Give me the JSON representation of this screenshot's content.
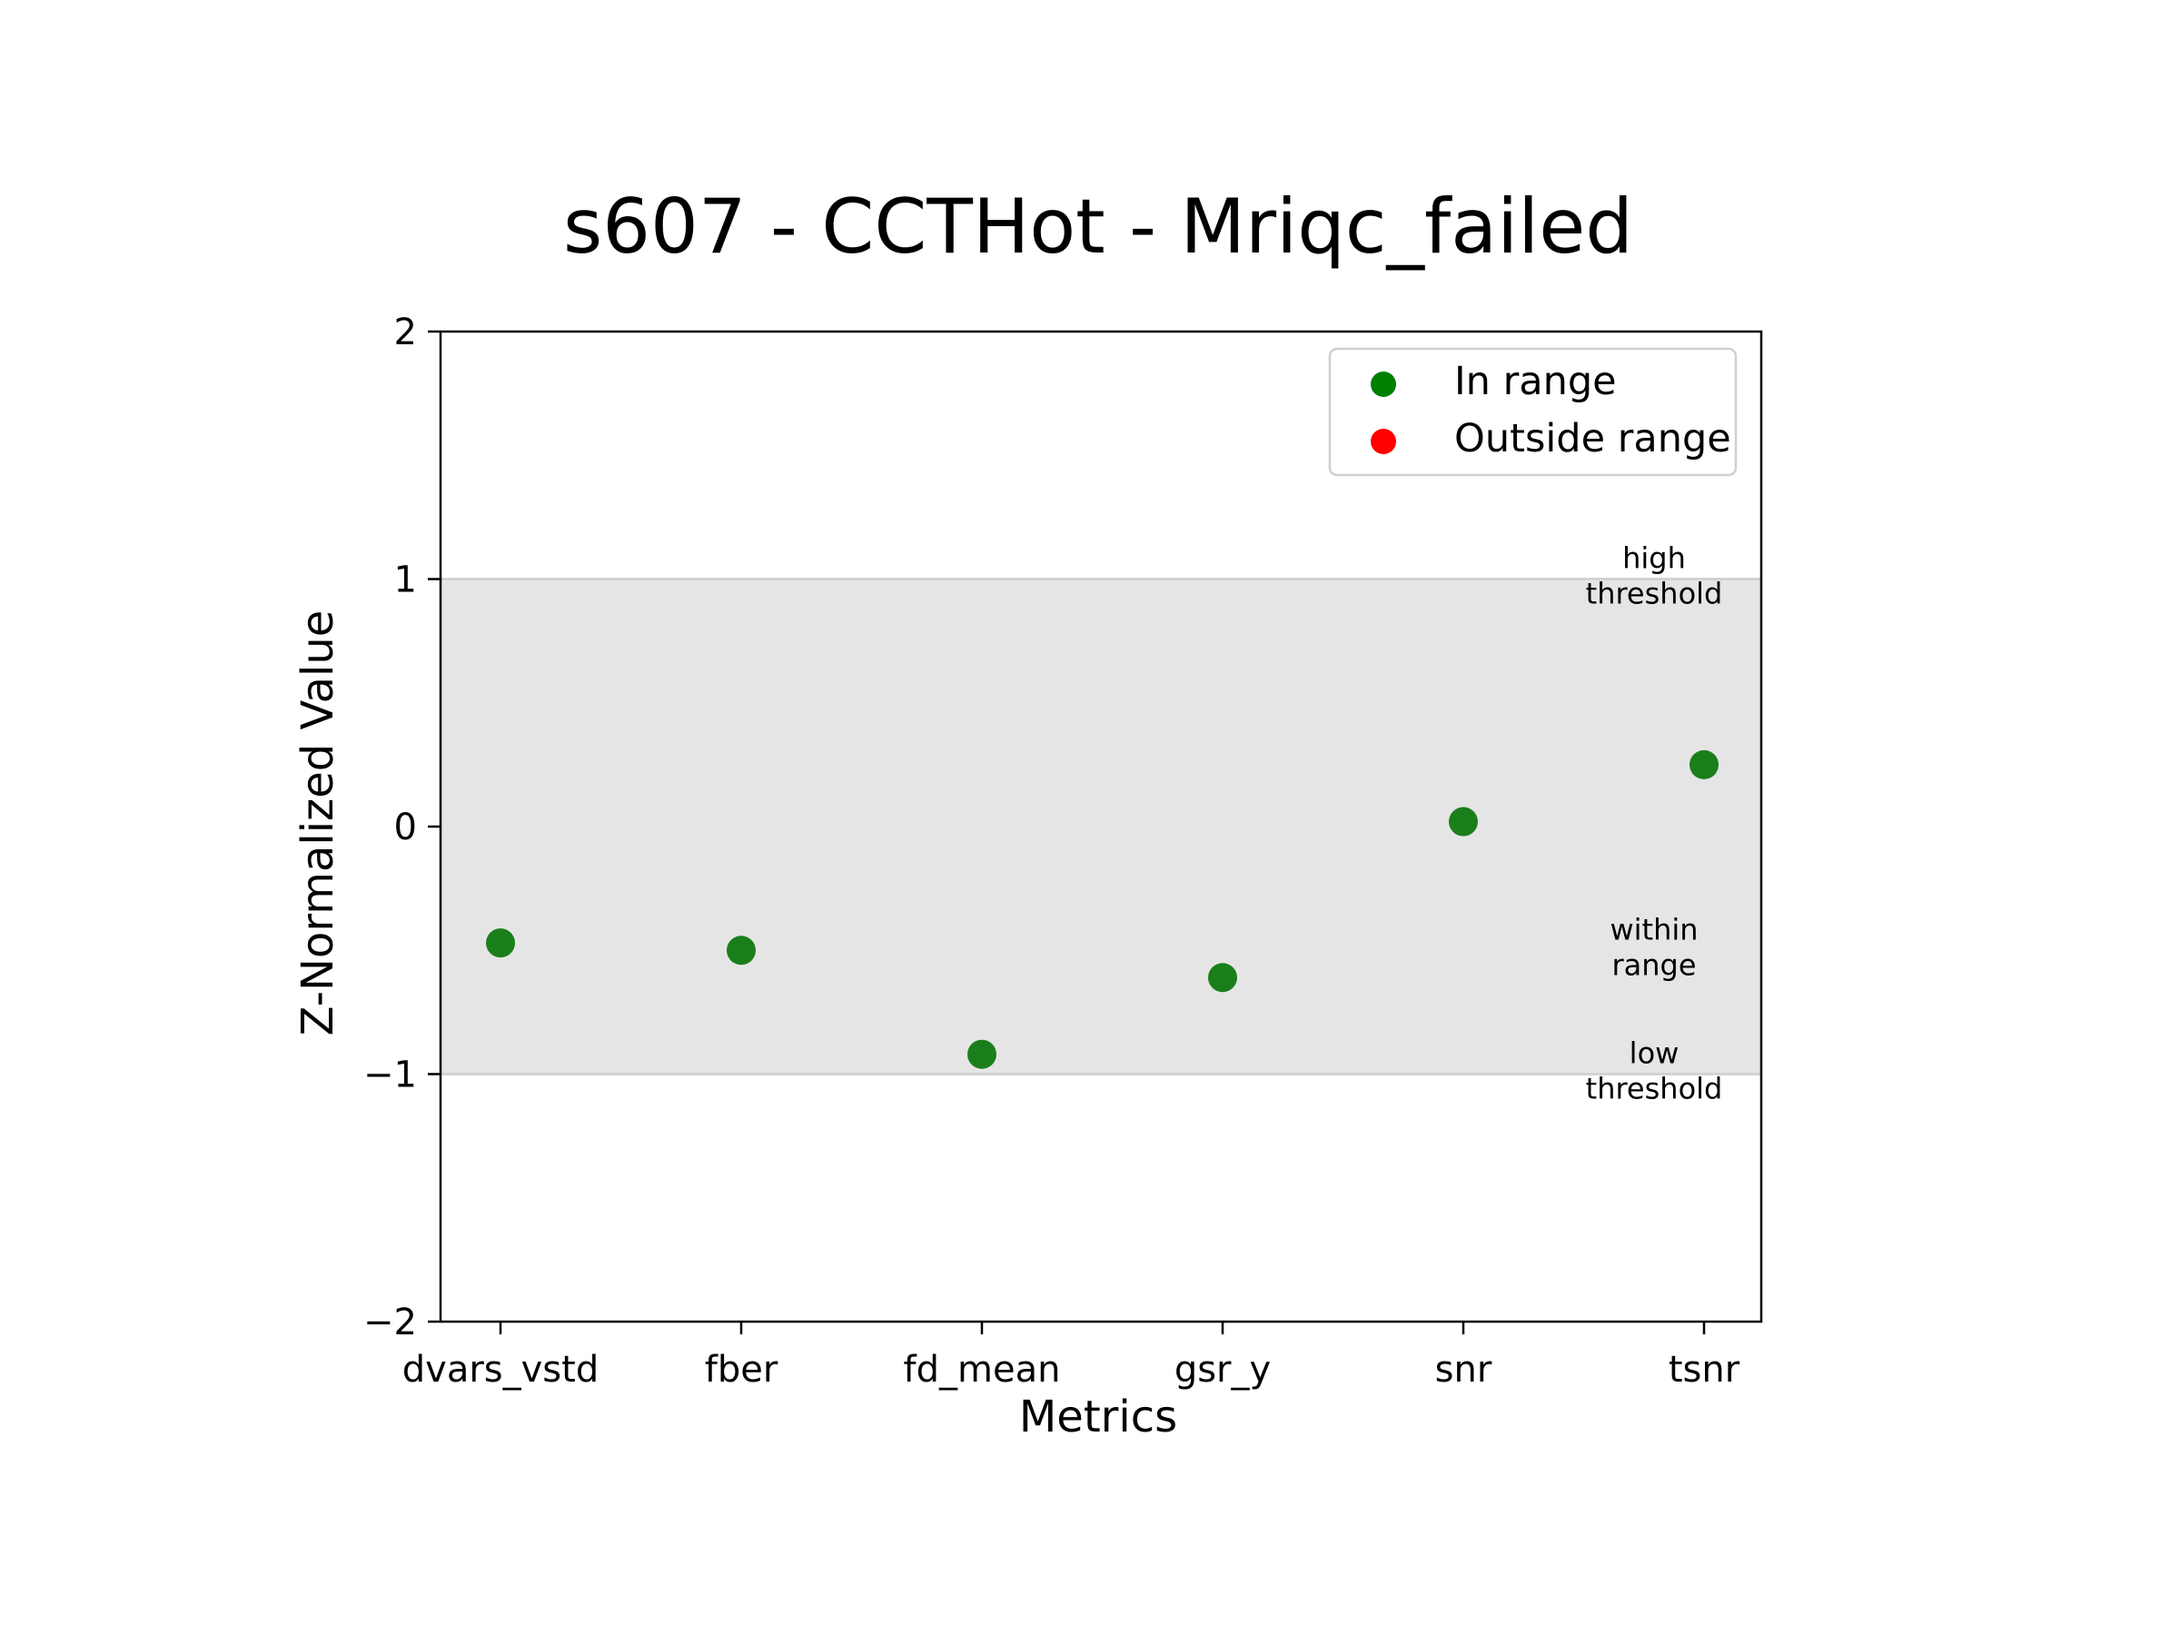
{
  "chart_data": {
    "type": "scatter",
    "title": "s607 - CCTHot - Mriqc_failed",
    "xlabel": "Metrics",
    "ylabel": "Z-Normalized Value",
    "categories": [
      "dvars_vstd",
      "fber",
      "fd_mean",
      "gsr_y",
      "snr",
      "tsnr"
    ],
    "values": [
      -0.47,
      -0.5,
      -0.92,
      -0.61,
      0.02,
      0.25
    ],
    "in_range": [
      true,
      true,
      true,
      true,
      true,
      true
    ],
    "ylim": [
      -2,
      2
    ],
    "yticks": [
      {
        "value": 2,
        "label": "2"
      },
      {
        "value": 1,
        "label": "1"
      },
      {
        "value": 0,
        "label": "0"
      },
      {
        "value": -1,
        "label": "−1"
      },
      {
        "value": -2,
        "label": "−2"
      }
    ],
    "band": {
      "low": -1,
      "high": 1,
      "color": "#e5e5e5"
    },
    "annotations": [
      {
        "lines": [
          "high",
          "threshold"
        ],
        "y": 1
      },
      {
        "lines": [
          "within",
          "range"
        ],
        "y": -0.5
      },
      {
        "lines": [
          "low",
          "threshold"
        ],
        "y": -1
      }
    ],
    "legend": {
      "position": "top-right",
      "entries": [
        {
          "label": "In range",
          "color": "#008000"
        },
        {
          "label": "Outside range",
          "color": "#ff0000"
        }
      ]
    },
    "colors": {
      "in_range": "#1a7f1a",
      "outside_range": "#ff0000",
      "threshold_line": "#d3d3d3"
    }
  }
}
